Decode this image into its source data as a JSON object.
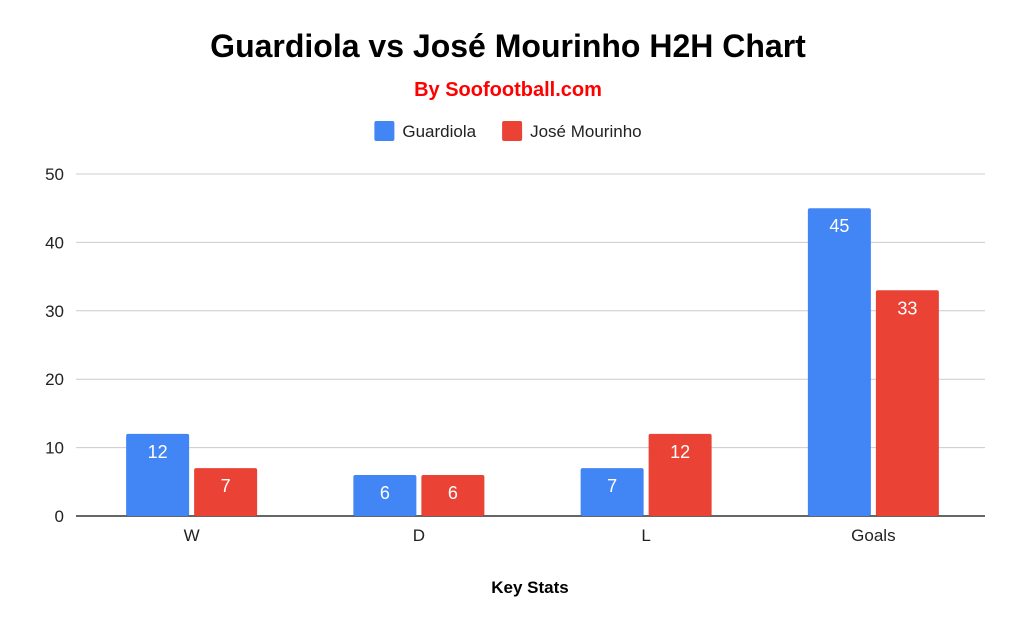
{
  "chart_data": {
    "type": "bar",
    "title": "Guardiola vs José Mourinho H2H Chart",
    "subtitle": "By Soofootball.com",
    "xlabel": "Key Stats",
    "ylabel": "",
    "categories": [
      "W",
      "D",
      "L",
      "Goals"
    ],
    "series": [
      {
        "name": "Guardiola",
        "values": [
          12,
          6,
          7,
          45
        ],
        "color": "#4285f4"
      },
      {
        "name": "José Mourinho",
        "values": [
          7,
          6,
          12,
          33
        ],
        "color": "#ea4335"
      }
    ],
    "ylim": [
      0,
      50
    ],
    "yticks": [
      "0",
      "10",
      "20",
      "30",
      "40",
      "50"
    ],
    "grid": true,
    "legend_position": "top-center",
    "data_labels": true,
    "subtitle_color": "#ff0000",
    "gridline_color": "#cccccc",
    "axis_color": "#333333"
  }
}
